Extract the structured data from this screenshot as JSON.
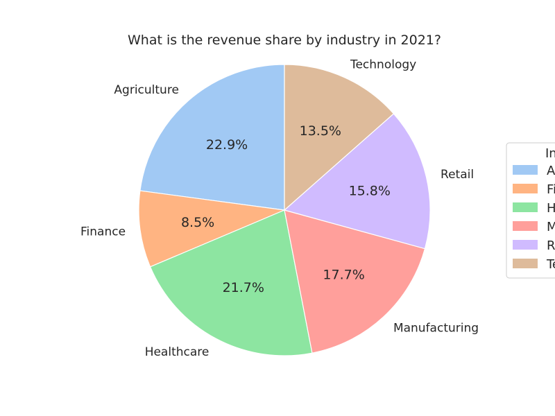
{
  "chart_data": {
    "type": "pie",
    "title": "What is the revenue share by industry in 2021?",
    "categories": [
      "Agriculture",
      "Finance",
      "Healthcare",
      "Manufacturing",
      "Retail",
      "Technology"
    ],
    "values": [
      22.9,
      8.5,
      21.7,
      17.7,
      15.8,
      13.5
    ],
    "value_labels": [
      "22.9%",
      "8.5%",
      "21.7%",
      "17.7%",
      "15.8%",
      "13.5%"
    ],
    "colors": [
      "#a1c9f4",
      "#ffb482",
      "#8de5a1",
      "#ff9f9b",
      "#d0bbff",
      "#debb9b"
    ],
    "start_angle_deg": 90,
    "direction": "counterclockwise",
    "legend": {
      "title": "Industry",
      "placement": "right",
      "entries": [
        "Agriculture",
        "Finance",
        "Healthcare",
        "Manufacturing",
        "Retail",
        "Technology"
      ]
    }
  }
}
